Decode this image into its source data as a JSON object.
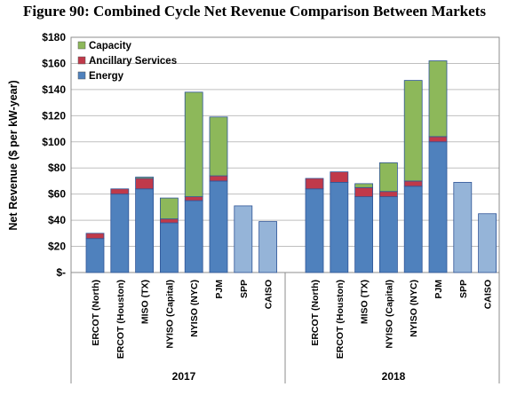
{
  "title": "Figure 90:  Combined Cycle Net Revenue Comparison Between Markets",
  "chart_data": {
    "type": "bar",
    "stacked": true,
    "ylabel": "Net Revenue ($ per kW-year)",
    "ylim": [
      0,
      180
    ],
    "yticks": [
      0,
      20,
      40,
      60,
      80,
      100,
      120,
      140,
      160,
      180
    ],
    "ytick_labels": [
      "$-",
      "$20",
      "$40",
      "$60",
      "$80",
      "$100",
      "$120",
      "$140",
      "$160",
      "$180"
    ],
    "legend_position": "top-left",
    "grid": true,
    "colors": {
      "Energy": "#4f81bd",
      "Ancillary Services": "#c0394a",
      "Capacity": "#8db85a",
      "EnergyOnly": "#95b4d8"
    },
    "groups": [
      {
        "label": "2017",
        "categories": [
          "ERCOT (North)",
          "ERCOT (Houston)",
          "MISO (TX)",
          "NYISO (Capital)",
          "NYISO (NYC)",
          "PJM",
          "SPP",
          "CAISO"
        ],
        "series": [
          {
            "name": "Energy",
            "values": [
              26,
              60,
              64,
              38,
              55,
              70,
              51,
              39
            ]
          },
          {
            "name": "Ancillary Services",
            "values": [
              4,
              4,
              8,
              3,
              3,
              4,
              0,
              0
            ]
          },
          {
            "name": "Capacity",
            "values": [
              0,
              0,
              1,
              16,
              80,
              45,
              0,
              0
            ]
          }
        ]
      },
      {
        "label": "2018",
        "categories": [
          "ERCOT (North)",
          "ERCOT (Houston)",
          "MISO (TX)",
          "NYISO (Capital)",
          "NYISO (NYC)",
          "PJM",
          "SPP",
          "CAISO"
        ],
        "series": [
          {
            "name": "Energy",
            "values": [
              64,
              69,
              58,
              58,
              66,
              100,
              69,
              45
            ]
          },
          {
            "name": "Ancillary Services",
            "values": [
              8,
              8,
              7,
              4,
              4,
              4,
              0,
              0
            ]
          },
          {
            "name": "Capacity",
            "values": [
              0,
              0,
              3,
              22,
              77,
              58,
              0,
              0
            ]
          }
        ]
      }
    ],
    "legend": [
      "Capacity",
      "Ancillary Services",
      "Energy"
    ]
  }
}
